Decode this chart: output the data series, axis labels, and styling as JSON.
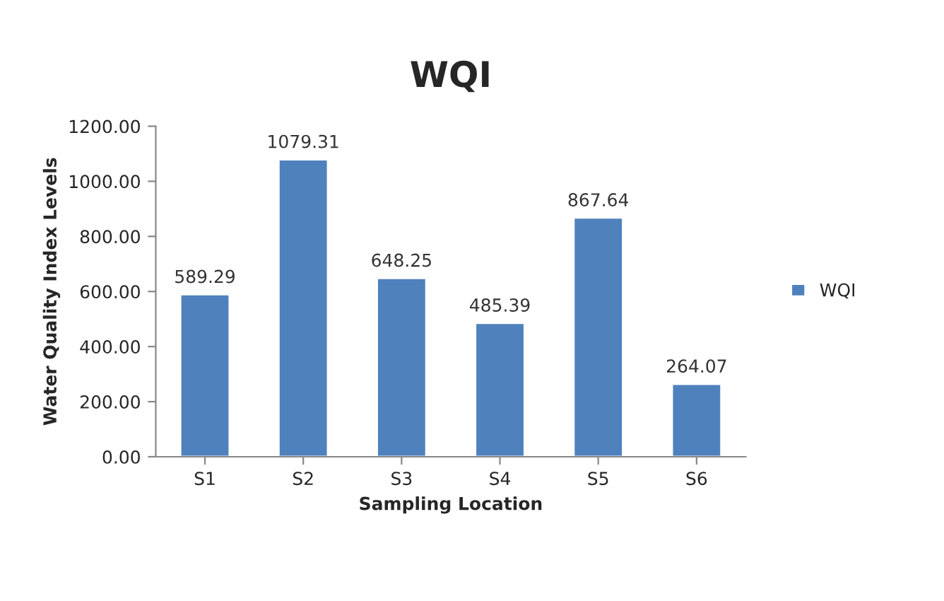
{
  "chart_data": {
    "type": "bar",
    "title": "WQI",
    "xlabel": "Sampling Location",
    "ylabel": "Water Quality Index Levels",
    "categories": [
      "S1",
      "S2",
      "S3",
      "S4",
      "S5",
      "S6"
    ],
    "series": [
      {
        "name": "WQI",
        "color": "#4f81bd",
        "values": [
          589.29,
          1079.31,
          648.25,
          485.39,
          867.64,
          264.07
        ]
      }
    ],
    "ylim": [
      0,
      1200
    ],
    "yticks": [
      {
        "value": 0,
        "label": "0.00"
      },
      {
        "value": 200,
        "label": "200.00"
      },
      {
        "value": 400,
        "label": "400.00"
      },
      {
        "value": 600,
        "label": "600.00"
      },
      {
        "value": 800,
        "label": "800.00"
      },
      {
        "value": 1000,
        "label": "1000.00"
      },
      {
        "value": 1200,
        "label": "1200.00"
      }
    ],
    "data_labels": true,
    "legend": "right",
    "grid": false
  }
}
